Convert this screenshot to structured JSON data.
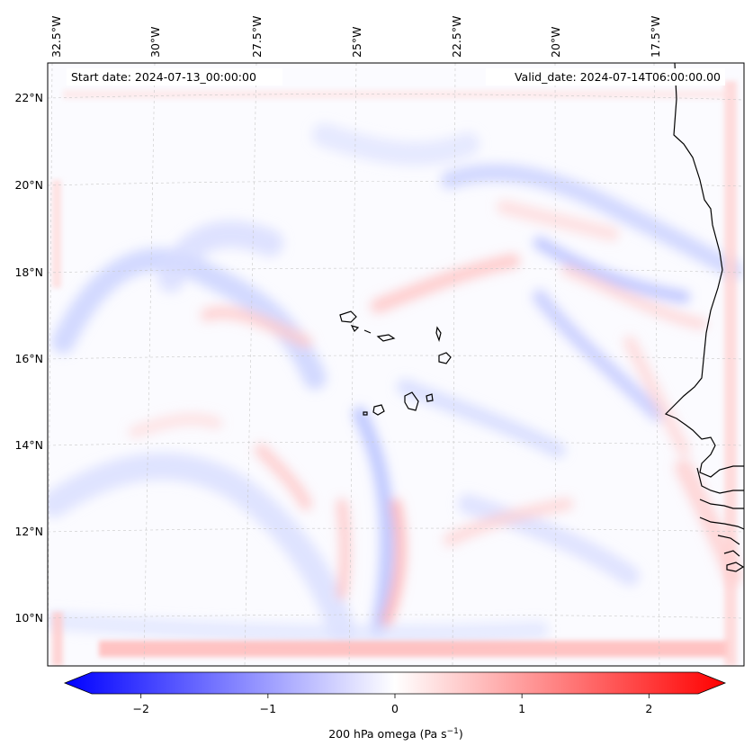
{
  "header": {
    "start_date": "Start date: 2024-07-13_00:00:00",
    "valid_date": "Valid_date: 2024-07-14T06:00:00.00"
  },
  "map": {
    "variable": "200 hPa omega",
    "longitude_labels": [
      "32.5°W",
      "30°W",
      "27.5°W",
      "25°W",
      "22.5°W",
      "20°W",
      "17.5°W"
    ],
    "latitude_labels": [
      "22°N",
      "20°N",
      "18°N",
      "16°N",
      "14°N",
      "12°N",
      "10°N"
    ],
    "colormap": "bwr",
    "colors": {
      "negative": "#0000ff",
      "zero": "#ffffff",
      "positive": "#ff0000",
      "coastline": "#000000",
      "gridline": "#b0b0b0"
    }
  },
  "colorbar": {
    "ticks": [
      "−2",
      "−1",
      "0",
      "1",
      "2"
    ],
    "tick_values": [
      -2,
      -1,
      0,
      1,
      2
    ],
    "range": [
      -2.6,
      2.6
    ],
    "label_main": "200 hPa omega (Pa s",
    "label_exp": "−1",
    "label_end": ")"
  }
}
